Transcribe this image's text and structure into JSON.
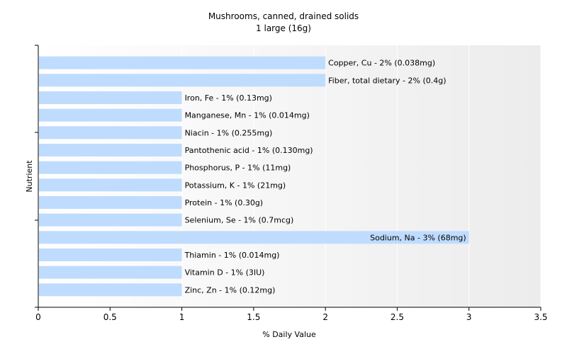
{
  "chart_data": {
    "type": "bar",
    "orientation": "horizontal",
    "title": "Mushrooms, canned, drained solids",
    "subtitle": "1 large (16g)",
    "xlabel": "% Daily Value",
    "ylabel": "Nutrient",
    "xlim": [
      0,
      3.5
    ],
    "xticks": [
      "0",
      "0.5",
      "1",
      "1.5",
      "2",
      "2.5",
      "3",
      "3.5"
    ],
    "grid": "vertical",
    "bar_color": "#bfdcff",
    "bars": [
      {
        "value": 2,
        "label": "Copper, Cu - 2% (0.038mg)"
      },
      {
        "value": 2,
        "label": "Fiber, total dietary - 2% (0.4g)"
      },
      {
        "value": 1,
        "label": "Iron, Fe - 1% (0.13mg)"
      },
      {
        "value": 1,
        "label": "Manganese, Mn - 1% (0.014mg)"
      },
      {
        "value": 1,
        "label": "Niacin - 1% (0.255mg)"
      },
      {
        "value": 1,
        "label": "Pantothenic acid - 1% (0.130mg)"
      },
      {
        "value": 1,
        "label": "Phosphorus, P - 1% (11mg)"
      },
      {
        "value": 1,
        "label": "Potassium, K - 1% (21mg)"
      },
      {
        "value": 1,
        "label": "Protein - 1% (0.30g)"
      },
      {
        "value": 1,
        "label": "Selenium, Se - 1% (0.7mcg)"
      },
      {
        "value": 3,
        "label": "Sodium, Na - 3% (68mg)"
      },
      {
        "value": 1,
        "label": "Thiamin - 1% (0.014mg)"
      },
      {
        "value": 1,
        "label": "Vitamin D - 1% (3IU)"
      },
      {
        "value": 1,
        "label": "Zinc, Zn - 1% (0.12mg)"
      }
    ]
  }
}
